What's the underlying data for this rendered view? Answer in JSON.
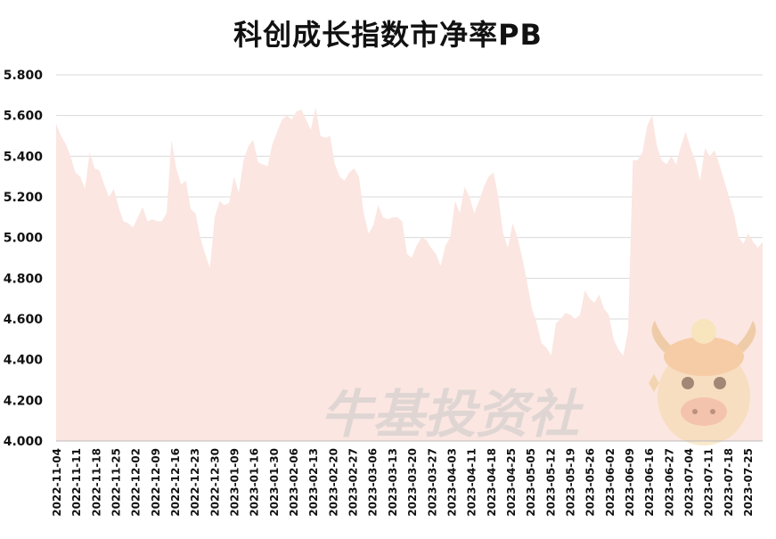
{
  "chart_data": {
    "type": "area",
    "title": "科创成长指数市净率PB",
    "xlabel": "",
    "ylabel": "",
    "ylim": [
      4.0,
      5.8
    ],
    "yticks": [
      "4.000",
      "4.200",
      "4.400",
      "4.600",
      "4.800",
      "5.000",
      "5.200",
      "5.400",
      "5.600",
      "5.800"
    ],
    "grid": true,
    "legend": "none",
    "colors": {
      "area": "#fbe6e1",
      "grid": "#d9d9d9",
      "text": "#111111"
    },
    "x_tick_labels": [
      "2022-11-04",
      "2022-11-11",
      "2022-11-18",
      "2022-11-25",
      "2022-12-02",
      "2022-12-09",
      "2022-12-16",
      "2022-12-23",
      "2022-12-30",
      "2023-01-09",
      "2023-01-16",
      "2023-01-30",
      "2023-02-06",
      "2023-02-13",
      "2023-02-20",
      "2023-02-27",
      "2023-03-06",
      "2023-03-13",
      "2023-03-20",
      "2023-03-27",
      "2023-04-03",
      "2023-04-11",
      "2023-04-18",
      "2023-04-25",
      "2023-05-05",
      "2023-05-12",
      "2023-05-19",
      "2023-05-26",
      "2023-06-02",
      "2023-06-09",
      "2023-06-16",
      "2023-06-27",
      "2023-07-04",
      "2023-07-11",
      "2023-07-18",
      "2023-07-25"
    ],
    "series": [
      {
        "values": [
          5.56,
          5.5,
          5.46,
          5.4,
          5.32,
          5.3,
          5.24,
          5.42,
          5.34,
          5.33,
          5.26,
          5.2,
          5.24,
          5.15,
          5.08,
          5.07,
          5.05,
          5.1,
          5.15,
          5.08,
          5.09,
          5.08,
          5.08,
          5.12,
          5.48,
          5.34,
          5.26,
          5.28,
          5.14,
          5.12,
          5.0,
          4.92,
          4.85,
          5.1,
          5.18,
          5.16,
          5.17,
          5.3,
          5.22,
          5.38,
          5.45,
          5.48,
          5.37,
          5.36,
          5.35,
          5.46,
          5.52,
          5.58,
          5.6,
          5.58,
          5.62,
          5.63,
          5.58,
          5.53,
          5.64,
          5.5,
          5.49,
          5.5,
          5.36,
          5.3,
          5.28,
          5.32,
          5.34,
          5.3,
          5.12,
          5.02,
          5.06,
          5.16,
          5.1,
          5.09,
          5.1,
          5.1,
          5.08,
          4.92,
          4.9,
          4.96,
          5.0,
          4.99,
          4.95,
          4.92,
          4.86,
          4.96,
          5.0,
          5.18,
          5.12,
          5.25,
          5.2,
          5.12,
          5.18,
          5.25,
          5.3,
          5.32,
          5.2,
          5.02,
          4.95,
          5.07,
          5.0,
          4.9,
          4.78,
          4.65,
          4.58,
          4.48,
          4.46,
          4.42,
          4.58,
          4.6,
          4.63,
          4.62,
          4.6,
          4.62,
          4.74,
          4.7,
          4.68,
          4.72,
          4.65,
          4.62,
          4.5,
          4.45,
          4.42,
          4.54,
          5.38,
          5.38,
          5.42,
          5.55,
          5.6,
          5.45,
          5.38,
          5.36,
          5.4,
          5.36,
          5.45,
          5.52,
          5.44,
          5.38,
          5.28,
          5.44,
          5.4,
          5.43,
          5.36,
          5.28,
          5.2,
          5.12,
          5.0,
          4.97,
          5.02,
          4.98,
          4.95,
          4.98
        ]
      }
    ]
  },
  "watermark": {
    "text": "牛基投资社",
    "mascot": "cartoon-bull-mascot-icon"
  }
}
